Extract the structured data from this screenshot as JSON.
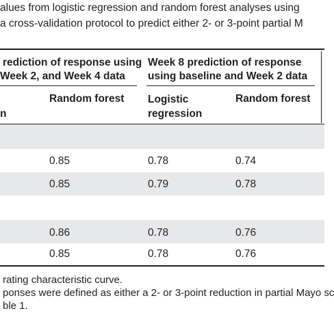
{
  "caption": {
    "line1": "alues from logistic regression and random forest analyses using",
    "line2": "a cross-validation protocol to predict either 2- or 3-point partial M"
  },
  "headers": {
    "group1_line1": "rediction of response using",
    "group1_line2": "Week 2, and Week 4 data",
    "group2_line1": "Week 8 prediction of response",
    "group2_line2": "using baseline and Week 2 data"
  },
  "subheaders": {
    "col0_fragment": "n",
    "col1": "Random forest",
    "col2_line1": "Logistic",
    "col2_line2": "regression",
    "col3": "Random forest"
  },
  "rows": [
    [
      "0.85",
      "0.78",
      "0.74"
    ],
    [
      "0.85",
      "0.79",
      "0.78"
    ],
    [
      "0.86",
      "0.78",
      "0.76"
    ],
    [
      "0.85",
      "0.78",
      "0.76"
    ]
  ],
  "footnotes": {
    "line1": "rating characteristic curve.",
    "line2": "ponses were defined as either a 2- or 3-point reduction in partial Mayo sc",
    "line3": "ble 1."
  },
  "colors": {
    "band": "#e7e8e9",
    "rule": "#231f20",
    "text": "#231f20"
  }
}
